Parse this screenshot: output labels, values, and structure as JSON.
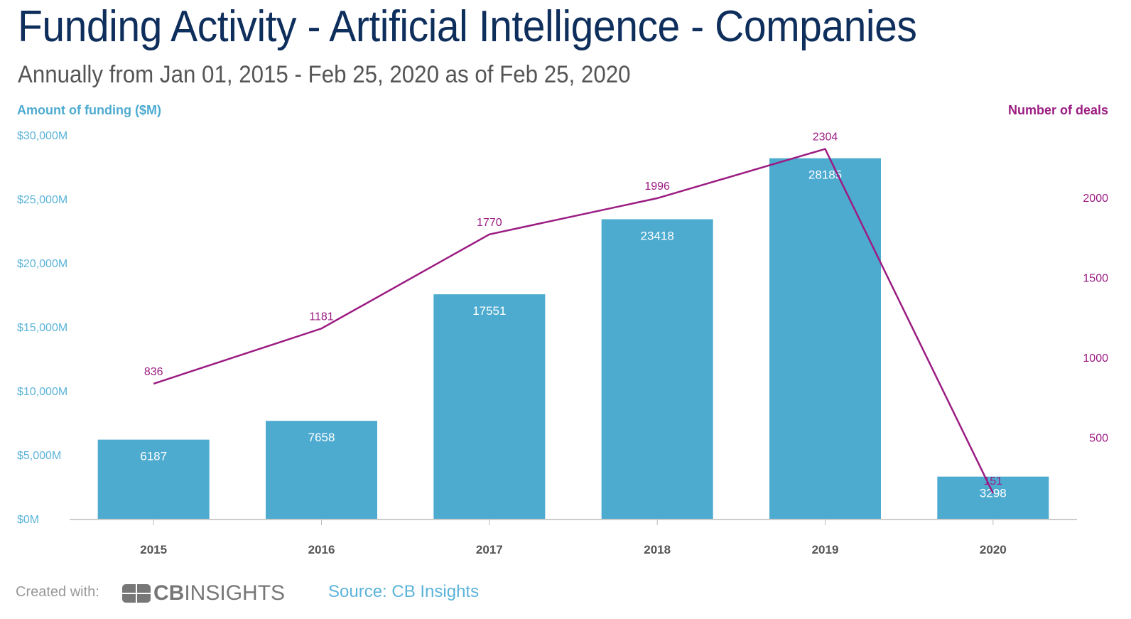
{
  "title": "Funding Activity - Artificial Intelligence - Companies",
  "subtitle": "Annually from Jan 01, 2015 - Feb 25, 2020 as of Feb 25, 2020",
  "footer": {
    "created_with": "Created with:",
    "logo_text": "CBINSIGHTS",
    "source": "Source: CB Insights"
  },
  "chart_data": {
    "type": "bar+line",
    "categories": [
      "2015",
      "2016",
      "2017",
      "2018",
      "2019",
      "2020"
    ],
    "series": [
      {
        "name": "Amount of funding ($M)",
        "type": "bar",
        "axis": "left",
        "color": "#4EABD0",
        "values": [
          6187,
          7658,
          17551,
          23418,
          28185,
          3298
        ]
      },
      {
        "name": "Number of deals",
        "type": "line",
        "axis": "right",
        "color": "#9B1C82",
        "values": [
          836,
          1181,
          1770,
          1996,
          2304,
          151
        ]
      }
    ],
    "left_axis": {
      "label": "Amount of funding ($M)",
      "ylim": [
        0,
        30000
      ],
      "ticks": [
        "$0M",
        "$5,000M",
        "$10,000M",
        "$15,000M",
        "$20,000M",
        "$25,000M",
        "$30,000M"
      ]
    },
    "right_axis": {
      "label": "Number of deals",
      "ylim": [
        0,
        2400
      ],
      "ticks": [
        "500",
        "1000",
        "1500",
        "2000"
      ]
    },
    "grid": false
  }
}
